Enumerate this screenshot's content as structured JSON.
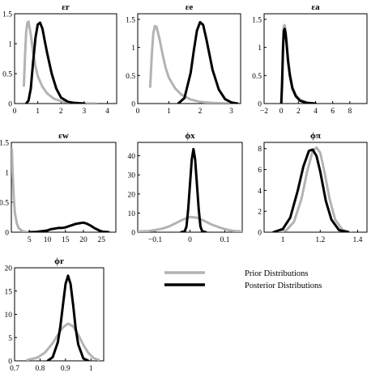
{
  "colors": {
    "prior": "#b3b3b3",
    "posterior": "#000000",
    "axis": "#000000"
  },
  "legend": {
    "prior_label": "Prior Distributions",
    "posterior_label": "Posterior Distributions"
  },
  "chart_data": [
    {
      "type": "line",
      "title": "εr",
      "xlim": [
        0,
        4.4
      ],
      "ylim": [
        0,
        1.5
      ],
      "xticks": [
        0,
        1,
        2,
        3,
        4
      ],
      "xtick_labels": [
        "0",
        "1",
        "2",
        "3",
        "4"
      ],
      "yticks": [
        0,
        0.5,
        1,
        1.5
      ],
      "ytick_labels": [
        "0",
        "0.5",
        "1",
        "1.5"
      ],
      "series": [
        {
          "role": "prior",
          "x": [
            0.4,
            0.45,
            0.5,
            0.55,
            0.6,
            0.7,
            0.8,
            0.9,
            1.0,
            1.2,
            1.4,
            1.7,
            2.0,
            2.4,
            3.0,
            3.5
          ],
          "y": [
            0.3,
            0.8,
            1.2,
            1.35,
            1.37,
            1.15,
            0.85,
            0.62,
            0.46,
            0.28,
            0.17,
            0.08,
            0.04,
            0.015,
            0.004,
            0.0
          ]
        },
        {
          "role": "posterior",
          "x": [
            0.5,
            0.6,
            0.7,
            0.8,
            0.9,
            1.0,
            1.1,
            1.2,
            1.3,
            1.4,
            1.6,
            1.8,
            2.0,
            2.3,
            2.6,
            3.0
          ],
          "y": [
            0.0,
            0.05,
            0.25,
            0.7,
            1.1,
            1.32,
            1.35,
            1.25,
            1.05,
            0.85,
            0.5,
            0.25,
            0.1,
            0.03,
            0.01,
            0.0
          ]
        }
      ]
    },
    {
      "type": "line",
      "title": "εe",
      "xlim": [
        0,
        3.3
      ],
      "ylim": [
        0,
        1.6
      ],
      "xticks": [
        0,
        1,
        2,
        3
      ],
      "xtick_labels": [
        "0",
        "1",
        "2",
        "3"
      ],
      "yticks": [
        0,
        0.5,
        1,
        1.5
      ],
      "ytick_labels": [
        "0",
        "0.5",
        "1",
        "1.5"
      ],
      "series": [
        {
          "role": "prior",
          "x": [
            0.4,
            0.45,
            0.5,
            0.55,
            0.6,
            0.7,
            0.8,
            0.9,
            1.0,
            1.2,
            1.4,
            1.7,
            2.0,
            2.4,
            3.0
          ],
          "y": [
            0.3,
            0.85,
            1.25,
            1.38,
            1.37,
            1.15,
            0.87,
            0.63,
            0.46,
            0.27,
            0.16,
            0.07,
            0.03,
            0.01,
            0.0
          ]
        },
        {
          "role": "posterior",
          "x": [
            1.3,
            1.5,
            1.7,
            1.8,
            1.9,
            2.0,
            2.1,
            2.2,
            2.4,
            2.6,
            2.8,
            3.0,
            3.2
          ],
          "y": [
            0.0,
            0.1,
            0.55,
            0.95,
            1.3,
            1.45,
            1.4,
            1.15,
            0.6,
            0.25,
            0.08,
            0.02,
            0.0
          ]
        }
      ]
    },
    {
      "type": "line",
      "title": "εa",
      "xlim": [
        -2,
        10
      ],
      "ylim": [
        0,
        1.6
      ],
      "xticks": [
        -2,
        0,
        2,
        4,
        6,
        8
      ],
      "xtick_labels": [
        "−2",
        "0",
        "2",
        "4",
        "6",
        "8"
      ],
      "yticks": [
        0,
        0.5,
        1,
        1.5
      ],
      "ytick_labels": [
        "0",
        "0.5",
        "1",
        "1.5"
      ],
      "series": [
        {
          "role": "prior",
          "x": [
            0.0,
            0.1,
            0.2,
            0.3,
            0.4,
            0.5,
            0.6,
            0.8,
            1.0,
            1.3,
            1.7,
            2.2,
            3.0,
            4.0
          ],
          "y": [
            0.0,
            0.4,
            1.0,
            1.38,
            1.4,
            1.3,
            1.15,
            0.8,
            0.55,
            0.3,
            0.15,
            0.07,
            0.02,
            0.0
          ]
        },
        {
          "role": "posterior",
          "x": [
            0.0,
            0.1,
            0.2,
            0.3,
            0.4,
            0.5,
            0.6,
            0.8,
            1.0,
            1.3,
            1.7,
            2.2,
            3.0,
            4.0
          ],
          "y": [
            0.0,
            0.35,
            0.95,
            1.3,
            1.33,
            1.25,
            1.1,
            0.75,
            0.5,
            0.27,
            0.13,
            0.05,
            0.01,
            0.0
          ]
        }
      ]
    },
    {
      "type": "line",
      "title": "εw",
      "xlim": [
        0,
        29
      ],
      "ylim": [
        0,
        1.5
      ],
      "xticks": [
        5,
        10,
        15,
        20,
        25
      ],
      "xtick_labels": [
        "5",
        "10",
        "15",
        "20",
        "25"
      ],
      "yticks": [
        0,
        0.5,
        1,
        1.5
      ],
      "ytick_labels": [
        "0",
        "0.5",
        "1",
        "1.5"
      ],
      "series": [
        {
          "role": "prior",
          "x": [
            0.1,
            0.2,
            0.3,
            0.5,
            0.7,
            1.0,
            1.5,
            2.0,
            3.0,
            4.0,
            5.0
          ],
          "y": [
            1.4,
            1.3,
            1.1,
            0.8,
            0.55,
            0.32,
            0.15,
            0.07,
            0.02,
            0.005,
            0.0
          ]
        },
        {
          "role": "posterior",
          "x": [
            5,
            7,
            9,
            10,
            11,
            12,
            13,
            14,
            15,
            16,
            17,
            18,
            19,
            20,
            21,
            22,
            23,
            24,
            25,
            27
          ],
          "y": [
            0.0,
            0.005,
            0.02,
            0.03,
            0.05,
            0.06,
            0.07,
            0.07,
            0.08,
            0.1,
            0.12,
            0.14,
            0.15,
            0.16,
            0.14,
            0.11,
            0.07,
            0.04,
            0.01,
            0.0
          ]
        }
      ]
    },
    {
      "type": "line",
      "title": "ϕx",
      "xlim": [
        -0.15,
        0.15
      ],
      "ylim": [
        0,
        47
      ],
      "xticks": [
        -0.1,
        0,
        0.1
      ],
      "xtick_labels": [
        "−0.1",
        "0",
        "0.1"
      ],
      "yticks": [
        0,
        10,
        20,
        30,
        40
      ],
      "ytick_labels": [
        "0",
        "10",
        "20",
        "30",
        "40"
      ],
      "series": [
        {
          "role": "prior",
          "x": [
            -0.15,
            -0.12,
            -0.1,
            -0.08,
            -0.06,
            -0.04,
            -0.02,
            0.0,
            0.02,
            0.04,
            0.06,
            0.08,
            0.1,
            0.12,
            0.15
          ],
          "y": [
            0.3,
            0.6,
            1.1,
            1.8,
            3.0,
            4.8,
            6.6,
            8.0,
            7.6,
            6.0,
            4.2,
            2.8,
            1.6,
            0.8,
            0.3
          ]
        },
        {
          "role": "posterior",
          "x": [
            -0.025,
            -0.015,
            -0.01,
            -0.005,
            0.0,
            0.005,
            0.01,
            0.015,
            0.02,
            0.025,
            0.03,
            0.035,
            0.045
          ],
          "y": [
            0.0,
            0.5,
            3.0,
            12.0,
            25.0,
            38.0,
            43.5,
            38.0,
            25.0,
            12.0,
            3.0,
            0.5,
            0.0
          ]
        }
      ]
    },
    {
      "type": "line",
      "title": "ϕπ",
      "xlim": [
        0.9,
        1.45
      ],
      "ylim": [
        0,
        8.6
      ],
      "xticks": [
        1,
        1.2,
        1.4
      ],
      "xtick_labels": [
        "1",
        "1.2",
        "1.4"
      ],
      "yticks": [
        0,
        2,
        4,
        6,
        8
      ],
      "ytick_labels": [
        "0",
        "2",
        "4",
        "6",
        "8"
      ],
      "series": [
        {
          "role": "prior",
          "x": [
            0.98,
            1.02,
            1.06,
            1.1,
            1.13,
            1.16,
            1.18,
            1.2,
            1.22,
            1.25,
            1.28,
            1.32,
            1.36
          ],
          "y": [
            0.0,
            0.2,
            1.0,
            3.2,
            5.8,
            7.8,
            8.1,
            7.6,
            6.0,
            3.2,
            1.2,
            0.2,
            0.0
          ]
        },
        {
          "role": "posterior",
          "x": [
            0.95,
            1.0,
            1.04,
            1.08,
            1.11,
            1.14,
            1.16,
            1.18,
            1.2,
            1.23,
            1.26,
            1.3,
            1.35
          ],
          "y": [
            0.0,
            0.3,
            1.4,
            4.0,
            6.3,
            7.8,
            7.9,
            7.3,
            5.8,
            3.0,
            1.2,
            0.2,
            0.0
          ]
        }
      ]
    },
    {
      "type": "line",
      "title": "ϕr",
      "xlim": [
        0.7,
        1.05
      ],
      "ylim": [
        0,
        20
      ],
      "xticks": [
        0.7,
        0.8,
        0.9,
        1
      ],
      "xtick_labels": [
        "0.7",
        "0.8",
        "0.9",
        "1"
      ],
      "yticks": [
        0,
        5,
        10,
        15,
        20
      ],
      "ytick_labels": [
        "0",
        "5",
        "10",
        "15",
        "20"
      ],
      "series": [
        {
          "role": "prior",
          "x": [
            0.75,
            0.79,
            0.82,
            0.85,
            0.87,
            0.89,
            0.91,
            0.93,
            0.95,
            0.97,
            0.99,
            1.01,
            1.03
          ],
          "y": [
            0.2,
            0.7,
            1.8,
            3.8,
            5.6,
            7.2,
            8.0,
            7.4,
            5.6,
            3.4,
            1.7,
            0.6,
            0.2
          ]
        },
        {
          "role": "posterior",
          "x": [
            0.83,
            0.85,
            0.87,
            0.88,
            0.89,
            0.9,
            0.91,
            0.92,
            0.93,
            0.94,
            0.95,
            0.97,
            0.99
          ],
          "y": [
            0.0,
            0.8,
            4.0,
            7.5,
            12.0,
            16.5,
            18.3,
            16.5,
            12.0,
            7.0,
            3.5,
            0.5,
            0.0
          ]
        }
      ]
    }
  ]
}
